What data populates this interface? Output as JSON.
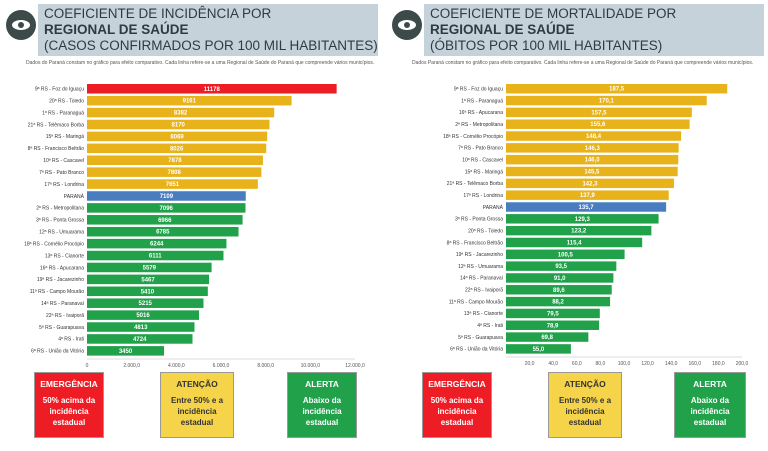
{
  "colors": {
    "red": "#ee1c24",
    "gold": "#e8b21b",
    "blue": "#4a7dbf",
    "green": "#21a24a",
    "title_bg": "#c5d2da"
  },
  "left": {
    "title_line1": "COEFICIENTE DE INCIDÊNCIA POR",
    "title_line2": "REGIONAL DE SAÚDE",
    "title_line3": "(CASOS CONFIRMADOS POR 100 MIL HABITANTES)",
    "note": "Dados do Paraná constam no gráfico para efeito comparativo. Cada linha refere-se a uma Regional de Saúde do Paraná que compreende vários municípios."
  },
  "right": {
    "title_line1": "COEFICIENTE DE MORTALIDADE POR",
    "title_line2": "REGIONAL DE SAÚDE",
    "title_line3": "(ÓBITOS POR 100 MIL HABITANTES)",
    "note": "Dados Paraná constam no gráfico para efeito comparativo. Cada linha refere-se a uma Regional de Saúde do Paraná que compreende vários municípios."
  },
  "legend": {
    "emergencia_title": "EMERGÊNCIA",
    "emergencia_desc": [
      "50% acima da",
      "incidência",
      "estadual"
    ],
    "atencao_title": "ATENÇÃO",
    "atencao_desc": [
      "Entre 50% e a",
      "incidência",
      "estadual"
    ],
    "alerta_title": "ALERTA",
    "alerta_desc": [
      "Abaixo da",
      "incidência",
      "estadual"
    ],
    "right_emergencia_desc": [
      "50% acima da",
      "incidência",
      "estadual"
    ],
    "right_atencao_desc": [
      "Entre 50% e a",
      "incidência",
      "estadual"
    ],
    "right_alerta_desc": [
      "Abaixo da",
      "incidência",
      "estadual"
    ]
  },
  "chart_data": [
    {
      "type": "bar",
      "orientation": "horizontal",
      "categories": [
        "9ª RS - Foz do Iguaçu",
        "20ª RS - Toledo",
        "1ª RS - Paranaguá",
        "21ª RS - Telêmaco Borba",
        "15ª RS - Maringá",
        "8ª RS - Francisco Beltrão",
        "10ª RS - Cascavel",
        "7ª RS - Pato Branco",
        "17ª RS - Londrina",
        "PARANÁ",
        "2ª RS - Metropolitana",
        "3ª RS - Ponta Grossa",
        "12ª RS - Umuarama",
        "18ª RS - Cornélio Procópio",
        "13ª RS - Cianorte",
        "16ª RS - Apucarana",
        "19ª RS - Jacarezinho",
        "11ª RS - Campo Mourão",
        "14ª RS - Paranavaí",
        "22ª RS - Ivaiporã",
        "5ª RS - Guarapuava",
        "4ª RS - Irati",
        "6ª RS - União da Vitória"
      ],
      "values": [
        11178,
        9161,
        8382,
        8170,
        8069,
        8026,
        7878,
        7808,
        7651,
        7109,
        7096,
        6966,
        6785,
        6244,
        6111,
        5579,
        5467,
        5410,
        5215,
        5016,
        4813,
        4724,
        3450
      ],
      "labels": [
        "11178",
        "9161",
        "8382",
        "8170",
        "8069",
        "8026",
        "7878",
        "7808",
        "7651",
        "7109",
        "7096",
        "6966",
        "6785",
        "6244",
        "6111",
        "5579",
        "5467",
        "5410",
        "5215",
        "5016",
        "4813",
        "4724",
        "3450"
      ],
      "colors": [
        "red",
        "gold",
        "gold",
        "gold",
        "gold",
        "gold",
        "gold",
        "gold",
        "gold",
        "blue",
        "green",
        "green",
        "green",
        "green",
        "green",
        "green",
        "green",
        "green",
        "green",
        "green",
        "green",
        "green",
        "green"
      ],
      "xlim": [
        0,
        12000
      ],
      "xticks": [
        "0",
        "2.000,0",
        "4.000,0",
        "6.000,0",
        "8.000,0",
        "10.000,0",
        "12.000,0"
      ]
    },
    {
      "type": "bar",
      "orientation": "horizontal",
      "categories": [
        "9ª RS - Foz do Iguaçu",
        "1ª RS - Paranaguá",
        "16ª RS - Apucarana",
        "2ª RS - Metropolitana",
        "18ª RS - Cornélio Procópio",
        "7ª RS - Pato Branco",
        "10ª RS - Cascavel",
        "15ª RS - Maringá",
        "21ª RS - Telêmaco Borba",
        "17ª RS - Londrina",
        "PARANÁ",
        "3ª RS - Ponta Grossa",
        "20ª RS - Toledo",
        "8ª RS - Francisco Beltrão",
        "19ª RS - Jacarezinho",
        "12ª RS - Umuarama",
        "14ª RS - Paranavaí",
        "22ª RS - Ivaiporã",
        "11ª RS - Campo Mourão",
        "13ª RS - Cianorte",
        "4ª RS - Irati",
        "5ª RS - Guarapuava",
        "6ª RS - União da Vitória"
      ],
      "values": [
        187.5,
        170.1,
        157.5,
        155.6,
        148.4,
        146.3,
        146.0,
        145.5,
        142.3,
        137.9,
        135.7,
        129.3,
        123.2,
        115.4,
        100.5,
        93.5,
        91.0,
        89.6,
        88.2,
        79.5,
        78.9,
        69.8,
        55.0
      ],
      "labels": [
        "187,5",
        "170,1",
        "157,5",
        "155,6",
        "148,4",
        "146,3",
        "146,0",
        "145,5",
        "142,3",
        "137,9",
        "135,7",
        "129,3",
        "123,2",
        "115,4",
        "100,5",
        "93,5",
        "91,0",
        "89,6",
        "88,2",
        "79,5",
        "78,9",
        "69,8",
        "55,0"
      ],
      "colors": [
        "gold",
        "gold",
        "gold",
        "gold",
        "gold",
        "gold",
        "gold",
        "gold",
        "gold",
        "gold",
        "blue",
        "green",
        "green",
        "green",
        "green",
        "green",
        "green",
        "green",
        "green",
        "green",
        "green",
        "green",
        "green"
      ],
      "xlim": [
        0,
        200
      ],
      "xticks": [
        "",
        "20,0",
        "40,0",
        "60,0",
        "80,0",
        "100,0",
        "120,0",
        "140,0",
        "160,0",
        "180,0",
        "200,0"
      ]
    }
  ]
}
